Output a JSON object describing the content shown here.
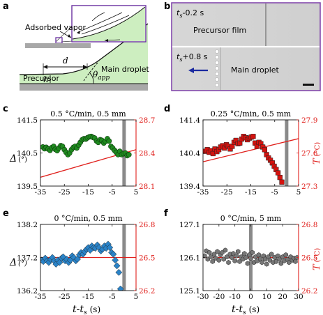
{
  "panel_labels": {
    "a": "a",
    "b": "b",
    "c": "c",
    "d": "d",
    "e": "e",
    "f": "f"
  },
  "schematic": {
    "adsorbed_vapor": "Adsorbed vapor",
    "d_label": "d",
    "h_label": "h",
    "theta_label": "θ",
    "theta_sub": "app",
    "precursor": "Precursor",
    "main_droplet": "Main droplet",
    "colors": {
      "liquid": "#cdeec0",
      "substrate": "#a8a8a8"
    }
  },
  "micrographs": {
    "top_time": "t",
    "top_time_sub": "s",
    "top_time_rest": "-0.2 s",
    "top_label": "Precursor film",
    "bottom_time": "t",
    "bottom_time_sub": "s",
    "bottom_time_rest": "+0.8 s",
    "bottom_label": "Main droplet",
    "arrow_color": "#1b2aa0",
    "frame_color": "#7d3fa8"
  },
  "axis_labels": {
    "left_delta": "Δ",
    "left_unit": "(°)",
    "right_T": "T",
    "right_unit": "(°C)",
    "x_main": "t-t",
    "x_sub": "s",
    "x_unit": "(s)"
  },
  "chart_data": [
    {
      "id": "c",
      "type": "scatter",
      "title": "0.5 °C/min, 0.5 mm",
      "xlim": [
        -35,
        5
      ],
      "xticks": [
        "-35",
        "-25",
        "-15",
        "-5",
        "5"
      ],
      "ylim": [
        139.5,
        141.5
      ],
      "yticks": [
        "139.5",
        "140.5",
        "141.5"
      ],
      "y2lim": [
        28.1,
        28.7
      ],
      "y2ticks": [
        "28.1",
        "28.4",
        "28.7"
      ],
      "marker": "circle",
      "marker_color": "#1f8a1f",
      "line_color": "#e0201c",
      "vline_x": 0,
      "x": [
        -34,
        -33.3,
        -32.6,
        -31.8,
        -31,
        -30.3,
        -29.5,
        -28.8,
        -28,
        -27.3,
        -26.5,
        -25.8,
        -25,
        -24.3,
        -23.5,
        -22.8,
        -22,
        -21.2,
        -20.5,
        -19.8,
        -19,
        -18.3,
        -17.5,
        -16.8,
        -16,
        -15.3,
        -14.5,
        -13.8,
        -13,
        -12.3,
        -11.5,
        -10.8,
        -10,
        -9.3,
        -8.5,
        -7.8,
        -7,
        -6.3,
        -5.5,
        -4.8,
        -4,
        -3.3,
        -2.5,
        -1.8,
        -1,
        -0.3,
        0.5,
        1.3,
        2
      ],
      "y": [
        140.68,
        140.63,
        140.67,
        140.62,
        140.58,
        140.66,
        140.7,
        140.61,
        140.57,
        140.65,
        140.72,
        140.7,
        140.6,
        140.52,
        140.45,
        140.5,
        140.6,
        140.67,
        140.7,
        140.65,
        140.74,
        140.82,
        140.9,
        140.93,
        140.92,
        140.96,
        140.99,
        141.0,
        140.97,
        140.95,
        140.86,
        140.82,
        140.9,
        140.88,
        140.8,
        140.85,
        140.93,
        140.86,
        140.7,
        140.65,
        140.58,
        140.52,
        140.45,
        140.55,
        140.45,
        140.48,
        140.5,
        140.42,
        140.45
      ],
      "line_T": [
        [
          -35,
          28.18
        ],
        [
          5,
          28.43
        ]
      ]
    },
    {
      "id": "d",
      "type": "scatter",
      "title": "0.25 °C/min, 0.5 mm",
      "xlim": [
        -35,
        5
      ],
      "xticks": [
        "-35",
        "-25",
        "-15",
        "-5",
        "5"
      ],
      "ylim": [
        139.4,
        141.4
      ],
      "yticks": [
        "139.4",
        "140.4",
        "141.4"
      ],
      "y2lim": [
        27.3,
        27.9
      ],
      "y2ticks": [
        "27.3",
        "27.6",
        "27.9"
      ],
      "marker": "square",
      "marker_color": "#d4130f",
      "line_color": "#e0201c",
      "vline_x": 0,
      "x": [
        -34,
        -33.2,
        -32.4,
        -31.6,
        -30.8,
        -30,
        -29.2,
        -28.4,
        -27.6,
        -26.8,
        -26,
        -25.2,
        -24.4,
        -23.6,
        -22.8,
        -22,
        -21.2,
        -20.4,
        -19.6,
        -18.8,
        -18,
        -17.2,
        -16.4,
        -15.6,
        -14.8,
        -14,
        -13.2,
        -12.4,
        -11.6,
        -10.8,
        -10,
        -9.2,
        -8.4,
        -7.6,
        -6.8,
        -6,
        -5.2,
        -4.4,
        -3.6,
        -2.8,
        -2
      ],
      "y": [
        140.45,
        140.5,
        140.42,
        140.47,
        140.38,
        140.52,
        140.44,
        140.5,
        140.58,
        140.62,
        140.55,
        140.65,
        140.6,
        140.52,
        140.6,
        140.72,
        140.78,
        140.68,
        140.7,
        140.82,
        140.9,
        140.86,
        140.8,
        140.85,
        140.88,
        140.9,
        140.7,
        140.6,
        140.72,
        140.68,
        140.58,
        140.5,
        140.35,
        140.25,
        140.18,
        140.1,
        140.0,
        139.9,
        139.8,
        139.66,
        139.52
      ],
      "line_T": [
        [
          -35,
          27.52
        ],
        [
          5,
          27.73
        ]
      ]
    },
    {
      "id": "e",
      "type": "scatter",
      "title": "0 °C/min, 0.5 mm",
      "xlim": [
        -35,
        5
      ],
      "xticks": [
        "-35",
        "-25",
        "-15",
        "-5",
        "5"
      ],
      "ylim": [
        136.2,
        138.2
      ],
      "yticks": [
        "136.2",
        "137.2",
        "138.2"
      ],
      "y2lim": [
        26.2,
        26.8
      ],
      "y2ticks": [
        "26.2",
        "26.5",
        "26.8"
      ],
      "marker": "diamond",
      "marker_color": "#2a83c8",
      "line_color": "#e0201c",
      "vline_x": 0,
      "x": [
        -34.5,
        -33.8,
        -33,
        -32.2,
        -31.5,
        -30.7,
        -30,
        -29.2,
        -28.5,
        -27.7,
        -27,
        -26.2,
        -25.5,
        -24.7,
        -24,
        -23.2,
        -22.5,
        -21.7,
        -21,
        -20.2,
        -19.5,
        -18.7,
        -18,
        -17.2,
        -16.5,
        -15.7,
        -15,
        -14.2,
        -13.5,
        -12.7,
        -12,
        -11.2,
        -10.5,
        -9.7,
        -9,
        -8.2,
        -7.5,
        -6.7,
        -6,
        -5.2,
        -4.5,
        -3.7,
        -3,
        -2.2,
        -1.5
      ],
      "y": [
        137.12,
        137.08,
        137.18,
        137.1,
        137.05,
        137.15,
        137.2,
        137.1,
        137.0,
        137.12,
        137.05,
        137.18,
        137.22,
        137.1,
        137.15,
        137.05,
        137.12,
        137.25,
        137.2,
        137.1,
        137.15,
        137.28,
        137.35,
        137.3,
        137.38,
        137.45,
        137.5,
        137.42,
        137.55,
        137.5,
        137.48,
        137.58,
        137.5,
        137.4,
        137.45,
        137.55,
        137.48,
        137.6,
        137.5,
        137.35,
        137.3,
        137.12,
        136.95,
        136.75,
        136.25
      ],
      "line_T": [
        [
          -35,
          26.5
        ],
        [
          5,
          26.5
        ]
      ]
    },
    {
      "id": "f",
      "type": "scatter",
      "title": "0 °C/min, 5 mm",
      "xlim": [
        -30,
        30
      ],
      "xticks": [
        "-30",
        "-20",
        "-10",
        "0",
        "10",
        "20",
        "30"
      ],
      "ylim": [
        125.1,
        127.1
      ],
      "yticks": [
        "125.1",
        "126.1",
        "127.1"
      ],
      "y2lim": [
        26.2,
        26.8
      ],
      "y2ticks": [
        "26.2",
        "26.5",
        "26.8"
      ],
      "marker": "hexagon",
      "marker_color": "#777777",
      "line_color": "#e0201c",
      "vline_x": 0,
      "x": [
        -29,
        -28,
        -27,
        -26,
        -25,
        -24,
        -23,
        -22,
        -21,
        -20,
        -19,
        -18,
        -17,
        -16,
        -15,
        -14,
        -13,
        -12,
        -11,
        -10,
        -9,
        -8,
        -7,
        -6,
        -5,
        -4,
        -3,
        -2,
        -1,
        0,
        1,
        2,
        3,
        4,
        5,
        6,
        7,
        8,
        9,
        10,
        11,
        12,
        13,
        14,
        15,
        16,
        17,
        18,
        19,
        20,
        21,
        22,
        23,
        24,
        25,
        26,
        27,
        28,
        29
      ],
      "y": [
        126.15,
        126.3,
        126.05,
        126.25,
        126.12,
        125.98,
        126.2,
        126.08,
        126.28,
        126.02,
        126.18,
        126.25,
        126.05,
        126.32,
        126.12,
        125.95,
        126.2,
        126.1,
        126.22,
        126.0,
        126.15,
        126.28,
        125.98,
        126.12,
        126.05,
        126.22,
        126.1,
        125.92,
        126.18,
        126.08,
        126.25,
        125.95,
        126.12,
        126.0,
        126.18,
        126.06,
        125.95,
        126.15,
        126.05,
        125.9,
        126.12,
        126.02,
        126.2,
        125.95,
        126.1,
        125.98,
        126.15,
        126.05,
        125.92,
        126.12,
        126.0,
        126.18,
        126.04,
        125.95,
        126.12,
        126.02,
        126.08,
        125.98,
        126.1
      ],
      "line_T": [
        [
          -30,
          26.5
        ],
        [
          30,
          26.5
        ]
      ]
    }
  ]
}
